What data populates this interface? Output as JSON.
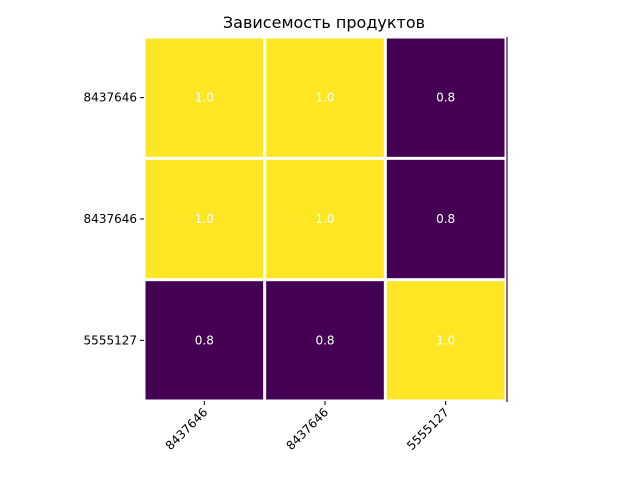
{
  "chart_data": {
    "type": "heatmap",
    "title": "Зависемость продуктов",
    "x_labels": [
      "8437646",
      "8437646",
      "5555127"
    ],
    "y_labels": [
      "8437646",
      "8437646",
      "5555127"
    ],
    "values": [
      [
        1.0,
        1.0,
        0.8
      ],
      [
        1.0,
        1.0,
        0.8
      ],
      [
        0.8,
        0.8,
        1.0
      ]
    ],
    "value_labels": [
      [
        "1.0",
        "1.0",
        "0.8"
      ],
      [
        "1.0",
        "1.0",
        "0.8"
      ],
      [
        "0.8",
        "0.8",
        "1.0"
      ]
    ],
    "colormap": "viridis",
    "colors": {
      "low": "#440154",
      "high": "#fde725",
      "grid": "#ffffff",
      "annotation": "#ffffff"
    },
    "vmin": 0.8,
    "vmax": 1.0
  }
}
